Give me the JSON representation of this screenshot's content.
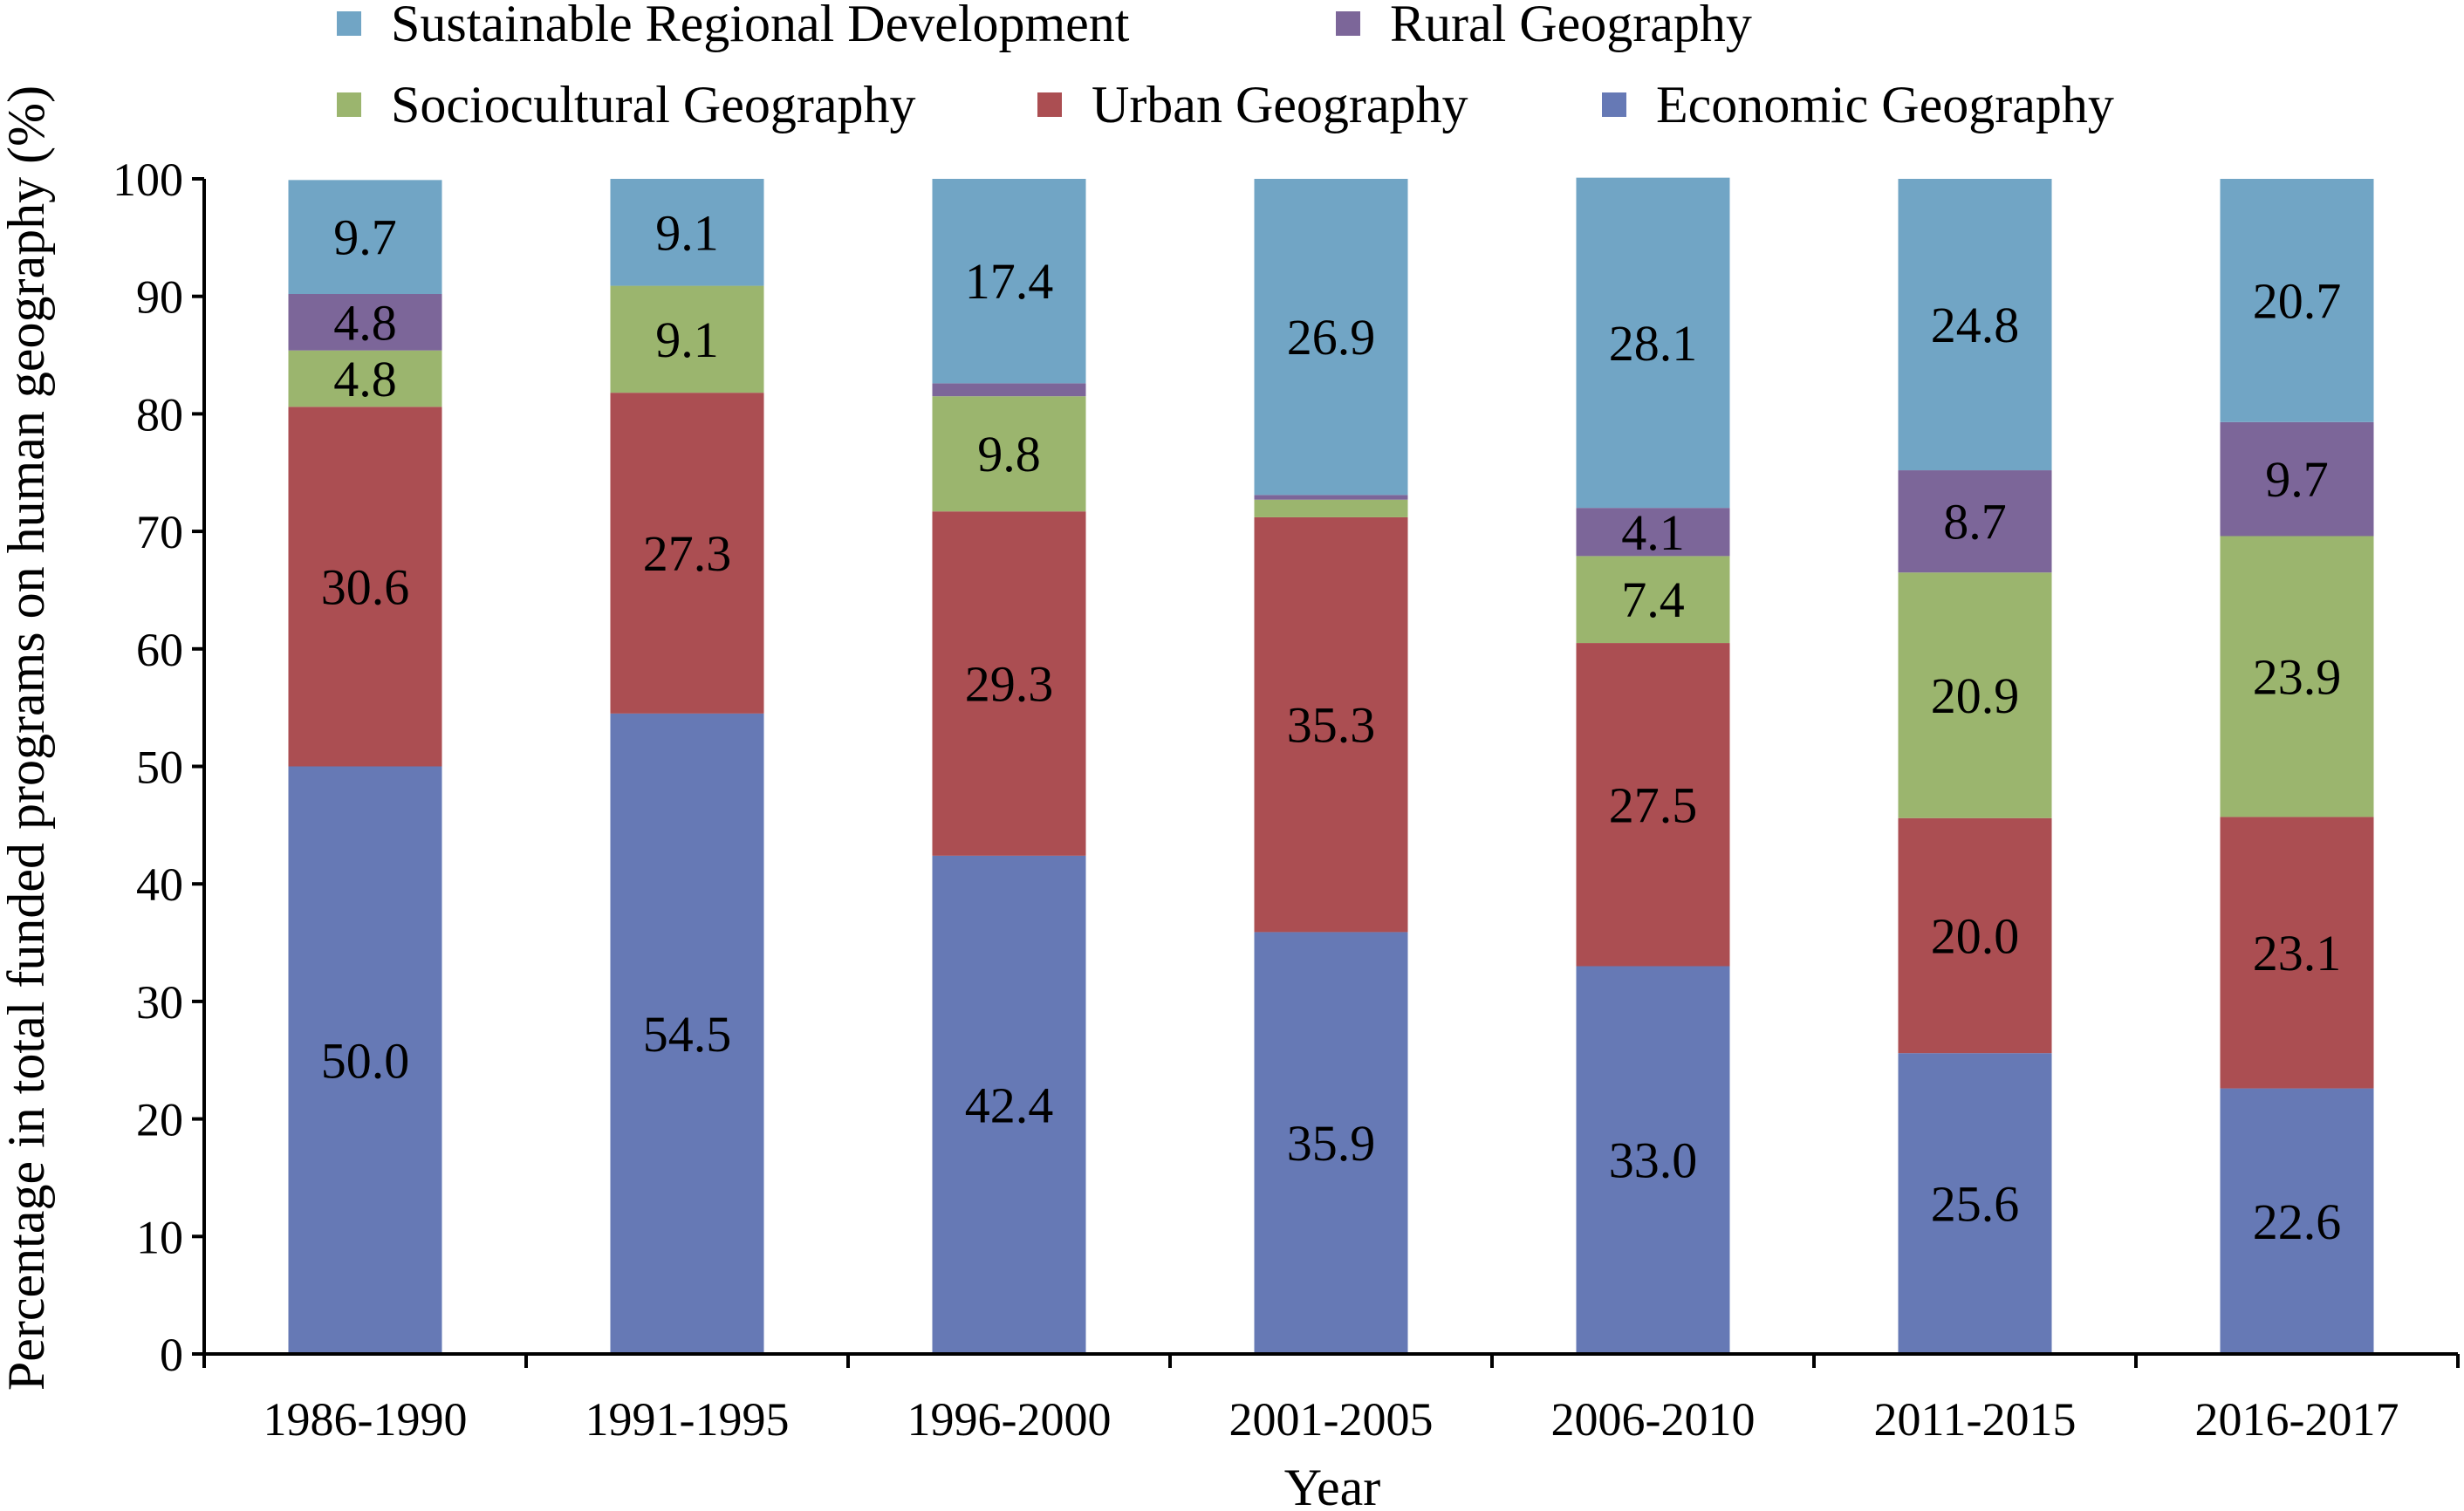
{
  "chart_data": {
    "type": "bar",
    "stacked": true,
    "xlabel": "Year",
    "ylabel": "Percentage in total funded programs on human geography (%)",
    "ylim": [
      0,
      100
    ],
    "yticks": [
      0,
      10,
      20,
      30,
      40,
      50,
      60,
      70,
      80,
      90,
      100
    ],
    "grid": false,
    "legend_position": "top",
    "categories": [
      "1986-1990",
      "1991-1995",
      "1996-2000",
      "2001-2005",
      "2006-2010",
      "2011-2015",
      "2016-2017"
    ],
    "series": [
      {
        "name": "Economic Geography",
        "color": "#6679b5",
        "values": [
          50.0,
          54.5,
          42.4,
          35.9,
          33.0,
          25.6,
          22.6
        ],
        "labels": [
          "50.0",
          "54.5",
          "42.4",
          "35.9",
          "33.0",
          "25.6",
          "22.6"
        ]
      },
      {
        "name": "Urban Geography",
        "color": "#ab4e52",
        "values": [
          30.6,
          27.3,
          29.3,
          35.3,
          27.5,
          20.0,
          23.1
        ],
        "labels": [
          "30.6",
          "27.3",
          "29.3",
          "35.3",
          "27.5",
          "20.0",
          "23.1"
        ]
      },
      {
        "name": "Sociocultural Geography",
        "color": "#9bb56e",
        "values": [
          4.8,
          9.1,
          9.8,
          1.5,
          7.4,
          20.9,
          23.9
        ],
        "labels": [
          "4.8",
          "9.1",
          "9.8",
          "",
          "7.4",
          "20.9",
          "23.9"
        ]
      },
      {
        "name": "Rural Geography",
        "color": "#7c6699",
        "values": [
          4.8,
          0,
          1.1,
          0.4,
          4.1,
          8.7,
          9.7
        ],
        "labels": [
          "4.8",
          "",
          "",
          "",
          "4.1",
          "8.7",
          "9.7"
        ]
      },
      {
        "name": "Sustainable Regional Development",
        "color": "#71a5c5",
        "values": [
          9.7,
          9.1,
          17.4,
          26.9,
          28.1,
          24.8,
          20.7
        ],
        "labels": [
          "9.7",
          "9.1",
          "17.4",
          "26.9",
          "28.1",
          "24.8",
          "20.7"
        ]
      }
    ]
  }
}
